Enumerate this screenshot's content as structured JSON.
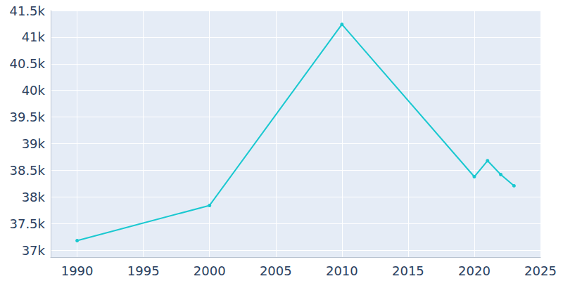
{
  "chart_data": {
    "type": "line",
    "x": [
      1990,
      2000,
      2010,
      2020,
      2021,
      2022,
      2023
    ],
    "values": [
      37180,
      37840,
      41240,
      38380,
      38680,
      38420,
      38210
    ],
    "color": "#19c8d0",
    "marker": "circle",
    "xlim": [
      1988,
      2025
    ],
    "xticks": [
      1990,
      1995,
      2000,
      2005,
      2010,
      2015,
      2020,
      2025
    ],
    "ylim": [
      36870,
      41500
    ],
    "yticks": [
      {
        "value": 37000,
        "label": "37k"
      },
      {
        "value": 37500,
        "label": "37.5k"
      },
      {
        "value": 38000,
        "label": "38k"
      },
      {
        "value": 38500,
        "label": "38.5k"
      },
      {
        "value": 39000,
        "label": "39k"
      },
      {
        "value": 39500,
        "label": "39.5k"
      },
      {
        "value": 40000,
        "label": "40k"
      },
      {
        "value": 40500,
        "label": "40.5k"
      },
      {
        "value": 41000,
        "label": "41k"
      },
      {
        "value": 41500,
        "label": "41.5k"
      }
    ],
    "grid": true
  }
}
